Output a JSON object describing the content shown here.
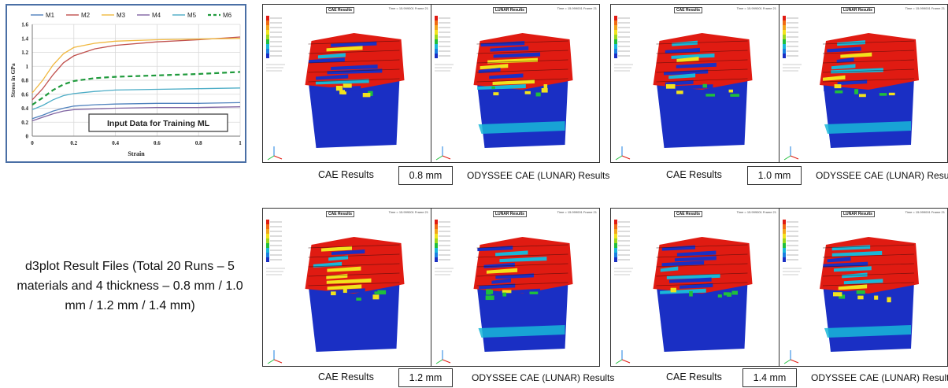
{
  "chart_data": {
    "type": "line",
    "title": "",
    "xlabel": "Strain",
    "ylabel": "Stress in GPa",
    "xlim": [
      0,
      1
    ],
    "ylim": [
      0,
      1.6
    ],
    "xticks": [
      "0",
      "0.2",
      "0.4",
      "0.6",
      "0.8",
      "1"
    ],
    "yticks": [
      "0",
      "0.2",
      "0.4",
      "0.6",
      "0.8",
      "1",
      "1.2",
      "1.4",
      "1.6"
    ],
    "legend_position": "top",
    "annotation": "Input Data for Training ML",
    "series": [
      {
        "name": "M1",
        "color": "#4f81bd",
        "dashed": false,
        "x": [
          0,
          0.05,
          0.1,
          0.15,
          0.2,
          0.3,
          0.4,
          0.6,
          0.8,
          1.0
        ],
        "y": [
          0.25,
          0.3,
          0.36,
          0.4,
          0.43,
          0.45,
          0.46,
          0.47,
          0.47,
          0.48
        ]
      },
      {
        "name": "M2",
        "color": "#c0504d",
        "dashed": false,
        "x": [
          0,
          0.05,
          0.1,
          0.15,
          0.2,
          0.3,
          0.4,
          0.6,
          0.8,
          1.0
        ],
        "y": [
          0.52,
          0.68,
          0.88,
          1.05,
          1.15,
          1.25,
          1.3,
          1.35,
          1.38,
          1.42
        ]
      },
      {
        "name": "M3",
        "color": "#f0b840",
        "dashed": false,
        "x": [
          0,
          0.05,
          0.1,
          0.15,
          0.2,
          0.3,
          0.4,
          0.6,
          0.8,
          1.0
        ],
        "y": [
          0.62,
          0.8,
          1.02,
          1.18,
          1.27,
          1.33,
          1.36,
          1.38,
          1.39,
          1.4
        ]
      },
      {
        "name": "M4",
        "color": "#8064a2",
        "dashed": false,
        "x": [
          0,
          0.05,
          0.1,
          0.15,
          0.2,
          0.3,
          0.4,
          0.6,
          0.8,
          1.0
        ],
        "y": [
          0.22,
          0.27,
          0.32,
          0.36,
          0.38,
          0.39,
          0.4,
          0.41,
          0.41,
          0.42
        ]
      },
      {
        "name": "M5",
        "color": "#4bacc6",
        "dashed": false,
        "x": [
          0,
          0.05,
          0.1,
          0.15,
          0.2,
          0.3,
          0.4,
          0.6,
          0.8,
          1.0
        ],
        "y": [
          0.38,
          0.44,
          0.52,
          0.58,
          0.61,
          0.64,
          0.66,
          0.67,
          0.68,
          0.69
        ]
      },
      {
        "name": "M6",
        "color": "#1f9a3c",
        "dashed": true,
        "x": [
          0,
          0.05,
          0.1,
          0.15,
          0.2,
          0.3,
          0.4,
          0.6,
          0.8,
          1.0
        ],
        "y": [
          0.45,
          0.55,
          0.66,
          0.74,
          0.79,
          0.83,
          0.85,
          0.87,
          0.89,
          0.92
        ]
      }
    ]
  },
  "panels": {
    "cae_tag": "CAE Results",
    "lunar_tag": "LUNAR Results",
    "meta": "Time = 15.999001  Frame 21",
    "legend_caption": "Contour Plot\nEffective plastic strain(Outer value, Max)"
  },
  "captions": {
    "cae": "CAE Results",
    "odyssee": "ODYSSEE CAE (LUNAR) Results",
    "t1": "0.8 mm",
    "t2": "1.0 mm",
    "t3": "1.2 mm",
    "t4": "1.4 mm"
  },
  "left_note": "d3plot Result Files (Total 20 Runs – 5 materials and 4 thickness –  0.8 mm / 1.0 mm / 1.2 mm / 1.4 mm)",
  "colors": {
    "fe_red": "#e01b12",
    "fe_blue": "#1a2fc4",
    "fe_green": "#1fbf3c",
    "fe_yellow": "#f2e21c",
    "fe_cyan": "#19b7d8",
    "chart_border": "#4a6fa5"
  }
}
